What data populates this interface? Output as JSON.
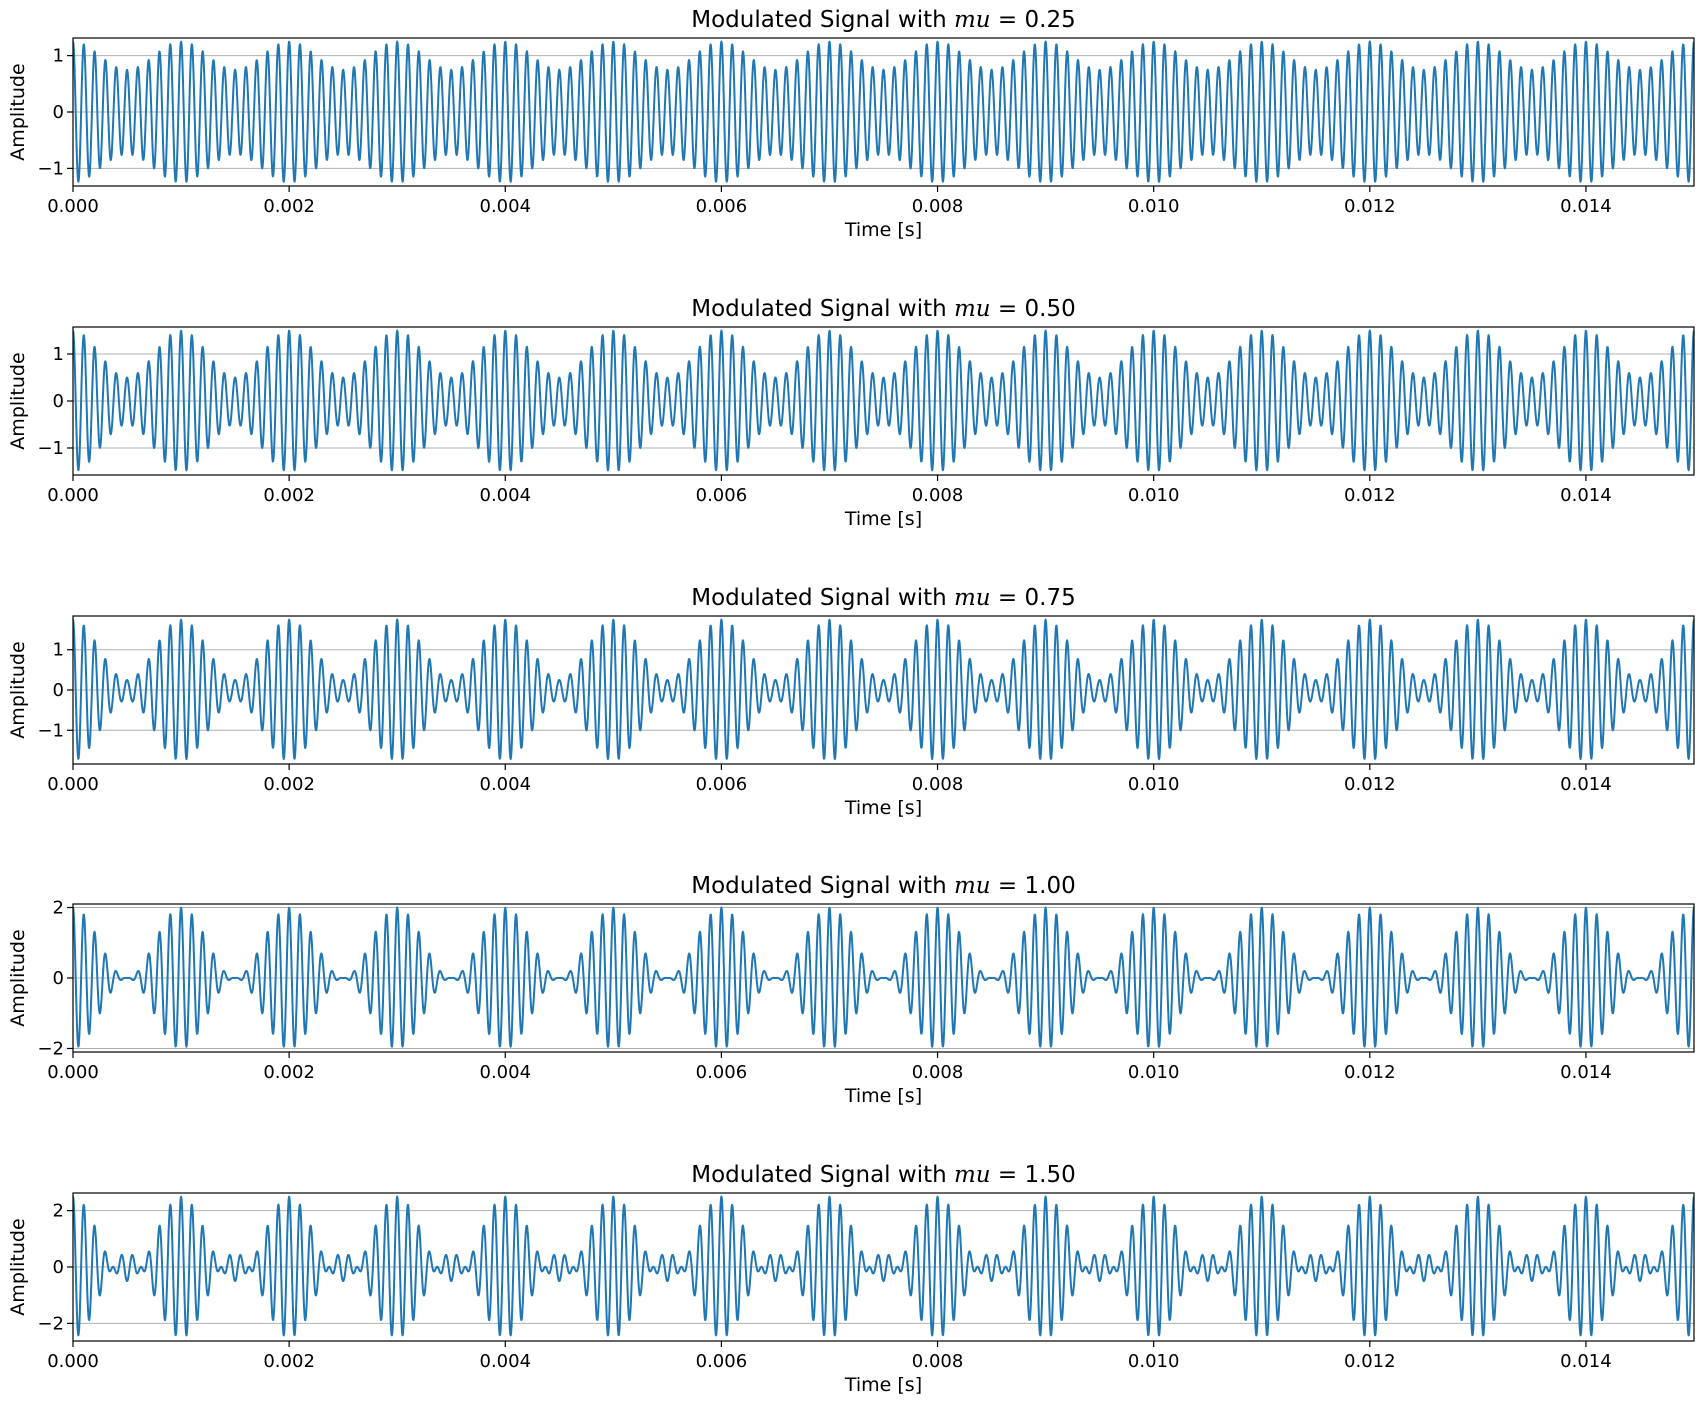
{
  "figure": {
    "line_color": "#1f77b4",
    "grid_color": "#b0b0b0"
  },
  "chart_data": [
    {
      "type": "line",
      "title_prefix": "Modulated Signal with ",
      "title_var": "mu",
      "title_eq": " = 0.25",
      "xlabel": "Time [s]",
      "ylabel": "Amplitude",
      "mu": 0.25,
      "carrier_frequency_hz": 10000,
      "message_frequency_hz": 1000,
      "x_range": [
        0,
        0.015
      ],
      "xlim": [
        0,
        0.015
      ],
      "ylim": [
        -1.3125,
        1.3125
      ],
      "xticks": [
        0.0,
        0.002,
        0.004,
        0.006,
        0.008,
        0.01,
        0.012,
        0.014
      ],
      "xtick_labels": [
        "0.000",
        "0.002",
        "0.004",
        "0.006",
        "0.008",
        "0.010",
        "0.012",
        "0.014"
      ],
      "yticks": [
        -1,
        0,
        1
      ],
      "ytick_labels": [
        "−1",
        "0",
        "1"
      ],
      "grid": "y-only"
    },
    {
      "type": "line",
      "title_prefix": "Modulated Signal with ",
      "title_var": "mu",
      "title_eq": " = 0.50",
      "xlabel": "Time [s]",
      "ylabel": "Amplitude",
      "mu": 0.5,
      "carrier_frequency_hz": 10000,
      "message_frequency_hz": 1000,
      "x_range": [
        0,
        0.015
      ],
      "xlim": [
        0,
        0.015
      ],
      "ylim": [
        -1.575,
        1.575
      ],
      "xticks": [
        0.0,
        0.002,
        0.004,
        0.006,
        0.008,
        0.01,
        0.012,
        0.014
      ],
      "xtick_labels": [
        "0.000",
        "0.002",
        "0.004",
        "0.006",
        "0.008",
        "0.010",
        "0.012",
        "0.014"
      ],
      "yticks": [
        -1,
        0,
        1
      ],
      "ytick_labels": [
        "−1",
        "0",
        "1"
      ],
      "grid": "y-only"
    },
    {
      "type": "line",
      "title_prefix": "Modulated Signal with ",
      "title_var": "mu",
      "title_eq": " = 0.75",
      "xlabel": "Time [s]",
      "ylabel": "Amplitude",
      "mu": 0.75,
      "carrier_frequency_hz": 10000,
      "message_frequency_hz": 1000,
      "x_range": [
        0,
        0.015
      ],
      "xlim": [
        0,
        0.015
      ],
      "ylim": [
        -1.8375,
        1.8375
      ],
      "xticks": [
        0.0,
        0.002,
        0.004,
        0.006,
        0.008,
        0.01,
        0.012,
        0.014
      ],
      "xtick_labels": [
        "0.000",
        "0.002",
        "0.004",
        "0.006",
        "0.008",
        "0.010",
        "0.012",
        "0.014"
      ],
      "yticks": [
        -1,
        0,
        1
      ],
      "ytick_labels": [
        "−1",
        "0",
        "1"
      ],
      "grid": "y-only"
    },
    {
      "type": "line",
      "title_prefix": "Modulated Signal with ",
      "title_var": "mu",
      "title_eq": " = 1.00",
      "xlabel": "Time [s]",
      "ylabel": "Amplitude",
      "mu": 1.0,
      "carrier_frequency_hz": 10000,
      "message_frequency_hz": 1000,
      "x_range": [
        0,
        0.015
      ],
      "xlim": [
        0,
        0.015
      ],
      "ylim": [
        -2.1,
        2.1
      ],
      "xticks": [
        0.0,
        0.002,
        0.004,
        0.006,
        0.008,
        0.01,
        0.012,
        0.014
      ],
      "xtick_labels": [
        "0.000",
        "0.002",
        "0.004",
        "0.006",
        "0.008",
        "0.010",
        "0.012",
        "0.014"
      ],
      "yticks": [
        -2,
        0,
        2
      ],
      "ytick_labels": [
        "−2",
        "0",
        "2"
      ],
      "grid": "y-only"
    },
    {
      "type": "line",
      "title_prefix": "Modulated Signal with ",
      "title_var": "mu",
      "title_eq": " = 1.50",
      "xlabel": "Time [s]",
      "ylabel": "Amplitude",
      "mu": 1.5,
      "carrier_frequency_hz": 10000,
      "message_frequency_hz": 1000,
      "x_range": [
        0,
        0.015
      ],
      "xlim": [
        0,
        0.015
      ],
      "ylim": [
        -2.625,
        2.625
      ],
      "xticks": [
        0.0,
        0.002,
        0.004,
        0.006,
        0.008,
        0.01,
        0.012,
        0.014
      ],
      "xtick_labels": [
        "0.000",
        "0.002",
        "0.004",
        "0.006",
        "0.008",
        "0.010",
        "0.012",
        "0.014"
      ],
      "yticks": [
        -2,
        0,
        2
      ],
      "ytick_labels": [
        "−2",
        "0",
        "2"
      ],
      "grid": "y-only"
    }
  ]
}
